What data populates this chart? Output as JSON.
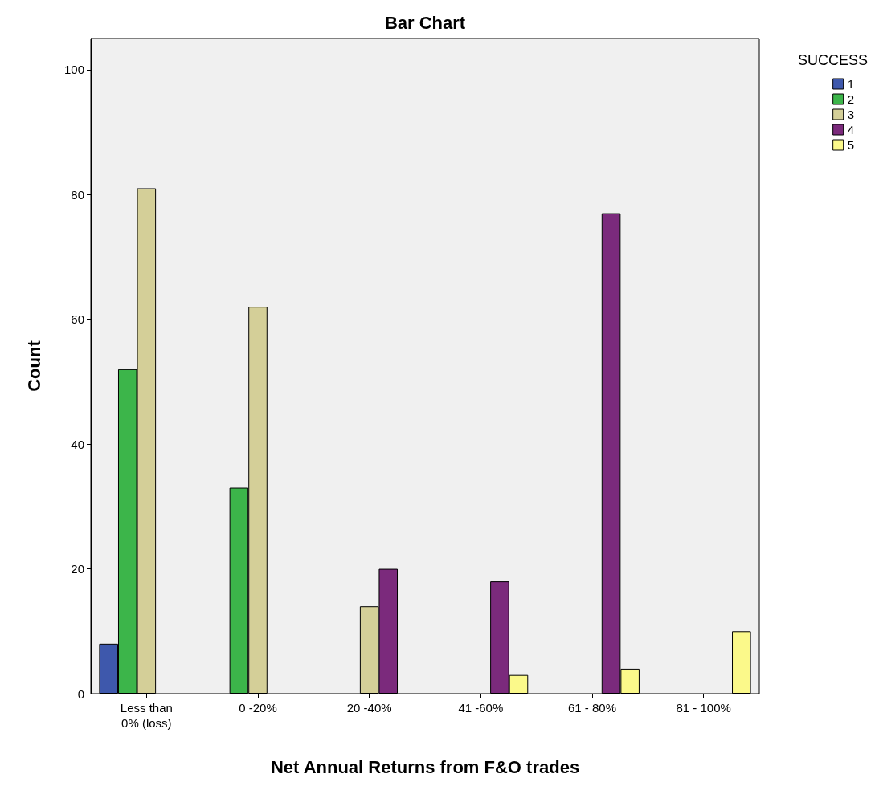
{
  "chart_data": {
    "type": "bar",
    "title": "Bar Chart",
    "xlabel": "Net Annual Returns from F&O trades",
    "ylabel": "Count",
    "legend_title": "SUCCESS",
    "categories": [
      "Less than\n0% (loss)",
      "0 -20%",
      "20 -40%",
      "41 -60%",
      "61 - 80%",
      "81 - 100%"
    ],
    "series": [
      {
        "name": "1",
        "color": "#3e58ac",
        "values": [
          8,
          null,
          null,
          null,
          null,
          null
        ]
      },
      {
        "name": "2",
        "color": "#3cb54a",
        "values": [
          52,
          33,
          null,
          null,
          null,
          null
        ]
      },
      {
        "name": "3",
        "color": "#d4cf98",
        "values": [
          81,
          62,
          14,
          null,
          null,
          null
        ]
      },
      {
        "name": "4",
        "color": "#7b2a7c",
        "values": [
          null,
          null,
          20,
          18,
          77,
          null
        ]
      },
      {
        "name": "5",
        "color": "#fbf98a",
        "values": [
          null,
          null,
          null,
          3,
          4,
          10
        ]
      }
    ],
    "ylim": [
      0,
      105
    ],
    "yticks": [
      0,
      20,
      40,
      60,
      80,
      100
    ],
    "grid": false,
    "legend": "top right"
  }
}
